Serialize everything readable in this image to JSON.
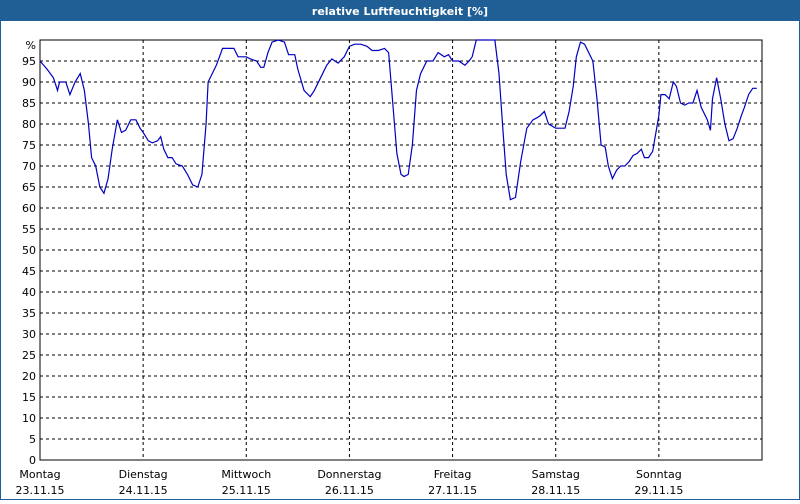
{
  "chart_data": {
    "type": "line",
    "title": "relative Luftfeuchtigkeit [%]",
    "y_unit": "%",
    "xlim": [
      0,
      7
    ],
    "xticks": [
      {
        "value": 0,
        "label": [
          "Montag",
          "23.11.15"
        ]
      },
      {
        "value": 1,
        "label": [
          "Dienstag",
          "24.11.15"
        ]
      },
      {
        "value": 2,
        "label": [
          "Mittwoch",
          "25.11.15"
        ]
      },
      {
        "value": 3,
        "label": [
          "Donnerstag",
          "26.11.15"
        ]
      },
      {
        "value": 4,
        "label": [
          "Freitag",
          "27.11.15"
        ]
      },
      {
        "value": 5,
        "label": [
          "Samstag",
          "28.11.15"
        ]
      },
      {
        "value": 6,
        "label": [
          "Sonntag",
          "29.11.15"
        ]
      }
    ],
    "ylim": [
      0,
      100
    ],
    "yticks": [
      0,
      5,
      10,
      15,
      20,
      25,
      30,
      35,
      40,
      45,
      50,
      55,
      60,
      65,
      70,
      75,
      80,
      85,
      90,
      95
    ],
    "grid": true,
    "series": [
      {
        "name": "relative Luftfeuchtigkeit",
        "color": "#0000c0",
        "x": [
          0,
          0.07,
          0.13,
          0.17,
          0.19,
          0.25,
          0.29,
          0.34,
          0.39,
          0.43,
          0.47,
          0.5,
          0.54,
          0.58,
          0.62,
          0.66,
          0.7,
          0.75,
          0.79,
          0.83,
          0.88,
          0.93,
          0.97,
          1,
          1.05,
          1.09,
          1.14,
          1.17,
          1.2,
          1.24,
          1.28,
          1.32,
          1.38,
          1.43,
          1.48,
          1.53,
          1.57,
          1.61,
          1.63,
          1.67,
          1.71,
          1.77,
          1.83,
          1.88,
          1.92,
          2,
          2.04,
          2.1,
          2.14,
          2.17,
          2.21,
          2.25,
          2.31,
          2.37,
          2.41,
          2.47,
          2.5,
          2.56,
          2.62,
          2.66,
          2.72,
          2.78,
          2.83,
          2.89,
          2.95,
          3,
          3.05,
          3.11,
          3.17,
          3.22,
          3.28,
          3.34,
          3.38,
          3.42,
          3.46,
          3.5,
          3.53,
          3.57,
          3.61,
          3.65,
          3.69,
          3.75,
          3.81,
          3.86,
          3.92,
          3.96,
          4,
          4.06,
          4.12,
          4.16,
          4.19,
          4.23,
          4.29,
          4.37,
          4.41,
          4.45,
          4.49,
          4.52,
          4.56,
          4.61,
          4.66,
          4.72,
          4.78,
          4.82,
          4.85,
          4.89,
          4.93,
          5,
          5.03,
          5.09,
          5.13,
          5.17,
          5.2,
          5.24,
          5.28,
          5.32,
          5.36,
          5.4,
          5.44,
          5.48,
          5.51,
          5.55,
          5.59,
          5.63,
          5.67,
          5.71,
          5.75,
          5.79,
          5.83,
          5.86,
          5.9,
          5.94,
          6,
          6.02,
          6.06,
          6.1,
          6.14,
          6.17,
          6.21,
          6.25,
          6.29,
          6.33,
          6.37,
          6.41,
          6.47,
          6.5,
          6.52,
          6.56,
          6.6,
          6.64,
          6.68,
          6.72,
          6.76,
          6.8,
          6.83,
          6.87,
          6.91,
          6.95
        ],
        "values": [
          95,
          93,
          91,
          88,
          90,
          90,
          87,
          90,
          92,
          88,
          80,
          72,
          70,
          65,
          63.5,
          67,
          74,
          81,
          78,
          78.5,
          81,
          81,
          79,
          78,
          76,
          75.5,
          76,
          77,
          74,
          72,
          72,
          70.5,
          70,
          68,
          65.5,
          65,
          68,
          80,
          90,
          92,
          94,
          98,
          98,
          98,
          96,
          96,
          95.5,
          95,
          93.5,
          93.5,
          97,
          99.5,
          100,
          99.5,
          96.5,
          96.5,
          93,
          88,
          86.5,
          88,
          91,
          94,
          95.5,
          94.5,
          96,
          98.5,
          99,
          99,
          98.5,
          97.5,
          97.5,
          98,
          97,
          85,
          73,
          68,
          67.5,
          68,
          75,
          88,
          92,
          95,
          95,
          97,
          96,
          96.5,
          95,
          95,
          94,
          95,
          96,
          100,
          100,
          100,
          100,
          92,
          78,
          68,
          62,
          62.5,
          71,
          79,
          81,
          81.5,
          82,
          83,
          80,
          79,
          79,
          79,
          83,
          89,
          96,
          99.5,
          99,
          97,
          95,
          86,
          75,
          74.5,
          70,
          67,
          69,
          70,
          70,
          71,
          72.5,
          73,
          74,
          72,
          72,
          73.5,
          82,
          87,
          87,
          86,
          90,
          89,
          85,
          84.5,
          85,
          85,
          88,
          84,
          81,
          78.5,
          86,
          91,
          86,
          80,
          76,
          76.5,
          79,
          82,
          84,
          87,
          88.5,
          88.5
        ]
      }
    ]
  }
}
